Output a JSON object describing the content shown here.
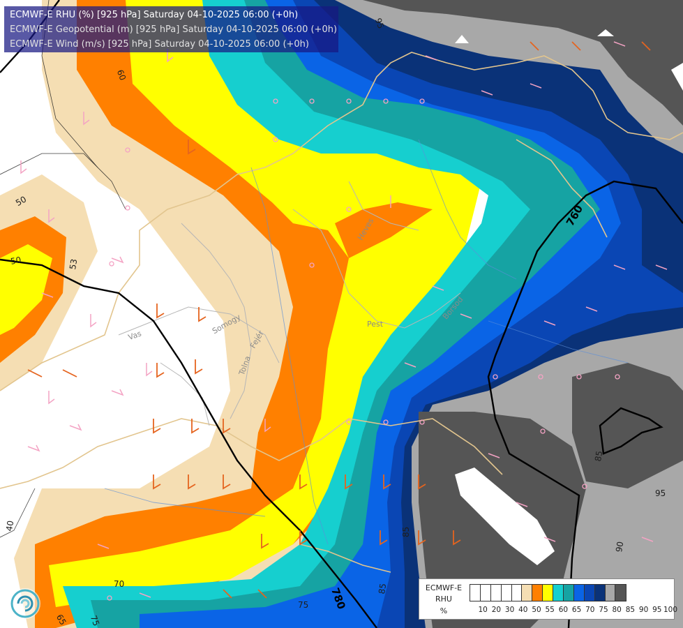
{
  "header": {
    "line1": "ECMWF-E RHU (%) [925 hPa] Saturday 04-10-2025 06:00 (+0h)",
    "line2": "ECMWF-E Geopotential (m) [925 hPa] Saturday 04-10-2025 06:00 (+0h)",
    "line3": "ECMWF-E Wind (m/s) [925 hPa] Saturday 04-10-2025 06:00 (+0h)"
  },
  "legend": {
    "model": "ECMWF-E",
    "variable": "RHU",
    "unit": "%",
    "colors": [
      "#ffffff",
      "#ffffff",
      "#ffffff",
      "#ffffff",
      "#ffffff",
      "#f5deb3",
      "#ff8000",
      "#ffff00",
      "#16cfcf",
      "#16a3a3",
      "#0a64e6",
      "#0a46b4",
      "#0a3278",
      "#a8a8a8",
      "#555555"
    ],
    "ticks": [
      "10",
      "20",
      "30",
      "40",
      "50",
      "55",
      "60",
      "65",
      "70",
      "75",
      "80",
      "85",
      "90",
      "95",
      "100"
    ]
  },
  "contour_labels": {
    "rhu": [
      "95",
      "60",
      "50",
      "50",
      "53",
      "40",
      "70",
      "75",
      "65",
      "75",
      "85",
      "85",
      "95",
      "90",
      "85"
    ],
    "geopotential": [
      "760",
      "780"
    ]
  },
  "place_labels": [
    "Vas",
    "Somogy",
    "Tolna",
    "Fejér",
    "Pest",
    "Heves",
    "Borsod"
  ]
}
